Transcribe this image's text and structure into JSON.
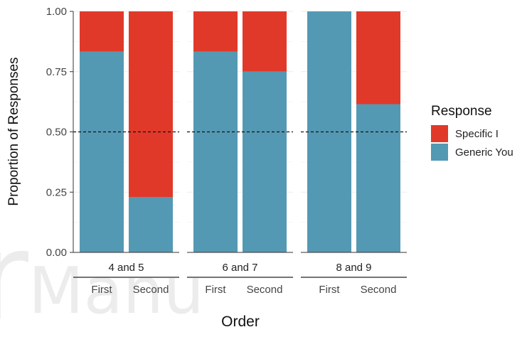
{
  "chart_data": {
    "type": "bar",
    "stacked": true,
    "facet_by": "age_group",
    "panels": [
      {
        "label": "4 and 5",
        "categories": [
          "First",
          "Second"
        ]
      },
      {
        "label": "6 and 7",
        "categories": [
          "First",
          "Second"
        ]
      },
      {
        "label": "8 and 9",
        "categories": [
          "First",
          "Second"
        ]
      }
    ],
    "series": [
      {
        "name": "Generic You",
        "color": "#5499b3",
        "values": [
          [
            0.833,
            0.23
          ],
          [
            0.833,
            0.75
          ],
          [
            1.0,
            0.615
          ]
        ]
      },
      {
        "name": "Specific I",
        "color": "#e0392a",
        "values": [
          [
            0.167,
            0.77
          ],
          [
            0.167,
            0.25
          ],
          [
            0.0,
            0.385
          ]
        ]
      }
    ],
    "xlabel": "Order",
    "ylabel": "Proportion of Responses",
    "ylim": [
      0,
      1
    ],
    "yticks": [
      "0.00",
      "0.25",
      "0.50",
      "0.75",
      "1.00"
    ],
    "reference_line": {
      "y": 0.5,
      "style": "dashed"
    },
    "legend": {
      "title": "Response",
      "placement": "right",
      "entries": [
        "Specific I",
        "Generic You"
      ]
    },
    "grid": true
  }
}
